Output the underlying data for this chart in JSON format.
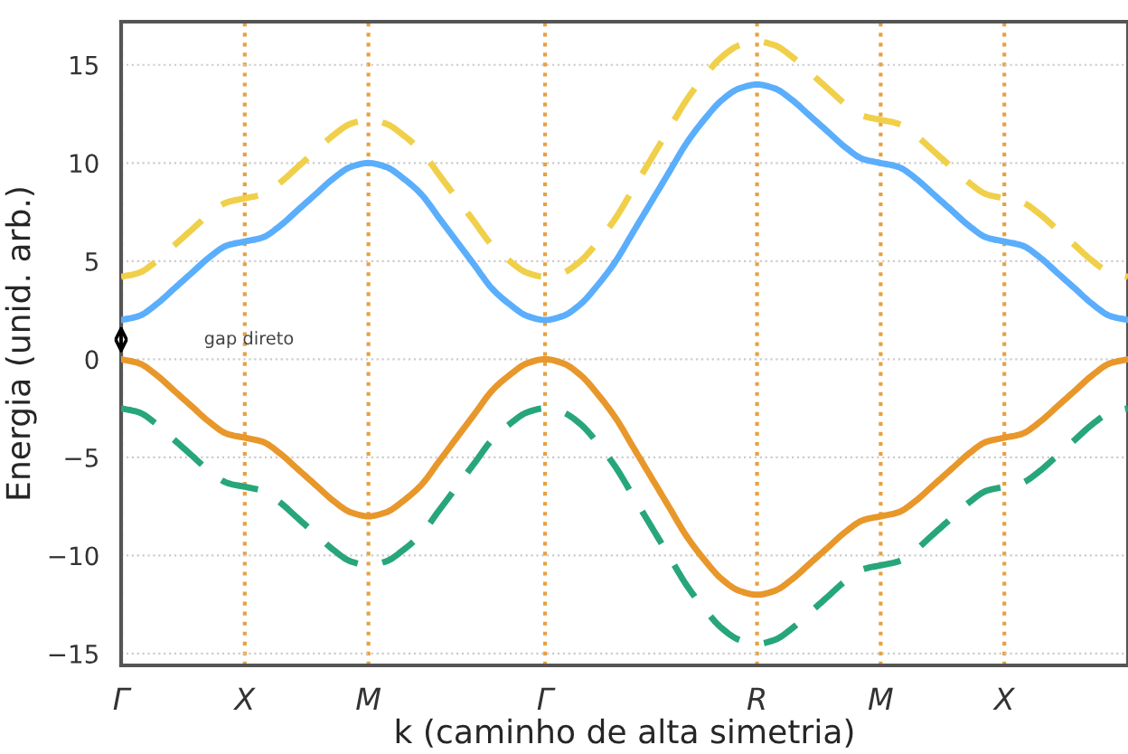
{
  "chart_data": {
    "type": "line",
    "xlabel": "k (caminho de alta simetria)",
    "ylabel": "Energia (unid. arb.)",
    "categories": [
      "Γ",
      null,
      null,
      null,
      null,
      null,
      null,
      "X",
      null,
      null,
      null,
      null,
      null,
      null,
      "M",
      null,
      null,
      null,
      null,
      null,
      null,
      null,
      null,
      null,
      "Γ",
      null,
      null,
      null,
      null,
      null,
      null,
      null,
      null,
      null,
      null,
      null,
      "R",
      null,
      null,
      null,
      null,
      null,
      null,
      "M",
      null,
      null,
      null,
      null,
      null,
      null,
      "X",
      null,
      null,
      null,
      null,
      null,
      null,
      null
    ],
    "series": [
      {
        "color": "#f0d04a",
        "line_style": "dashed",
        "values": [
          4.2,
          4.4,
          5,
          5.8,
          6.6,
          7.4,
          8,
          8.2,
          8.4,
          9,
          9.8,
          10.6,
          11.4,
          12,
          12.2,
          12,
          11.4,
          10.6,
          9.4,
          8.2,
          7,
          5.8,
          5,
          4.4,
          4.2,
          4.4,
          5,
          6,
          7.2,
          8.7,
          10.2,
          11.7,
          13.2,
          14.4,
          15.4,
          16,
          16.2,
          16,
          15.4,
          14.6,
          13.8,
          13,
          12.4,
          12.2,
          12,
          11.4,
          10.6,
          9.8,
          9,
          8.4,
          8.2,
          8,
          7.4,
          6.6,
          5.8,
          5,
          4.4,
          4.2
        ]
      },
      {
        "color": "#5aaefc",
        "line_style": "solid",
        "values": [
          2,
          2.2,
          2.8,
          3.6,
          4.4,
          5.2,
          5.8,
          6,
          6.2,
          6.8,
          7.6,
          8.4,
          9.2,
          9.8,
          10,
          9.8,
          9.2,
          8.4,
          7.2,
          6,
          4.8,
          3.6,
          2.8,
          2.2,
          2,
          2.2,
          2.8,
          3.8,
          5,
          6.5,
          8,
          9.5,
          11,
          12.2,
          13.2,
          13.8,
          14,
          13.8,
          13.2,
          12.4,
          11.6,
          10.8,
          10.2,
          10,
          9.8,
          9.2,
          8.4,
          7.6,
          6.8,
          6.2,
          6,
          5.8,
          5.2,
          4.4,
          3.6,
          2.8,
          2.2,
          2
        ]
      },
      {
        "color": "#e8972a",
        "line_style": "solid",
        "values": [
          0,
          -0.2,
          -0.8,
          -1.6,
          -2.4,
          -3.2,
          -3.8,
          -4,
          -4.2,
          -4.8,
          -5.6,
          -6.4,
          -7.2,
          -7.8,
          -8,
          -7.8,
          -7.2,
          -6.4,
          -5.2,
          -4,
          -2.8,
          -1.6,
          -0.8,
          -0.2,
          0,
          -0.2,
          -0.8,
          -1.8,
          -3,
          -4.5,
          -6,
          -7.5,
          -9,
          -10.2,
          -11.2,
          -11.8,
          -12,
          -11.8,
          -11.2,
          -10.4,
          -9.6,
          -8.8,
          -8.2,
          -8,
          -7.8,
          -7.2,
          -6.4,
          -5.6,
          -4.8,
          -4.2,
          -4,
          -3.8,
          -3.2,
          -2.4,
          -1.6,
          -0.8,
          -0.2,
          0
        ]
      },
      {
        "color": "#27a67a",
        "line_style": "dashed",
        "values": [
          -2.5,
          -2.7,
          -3.3,
          -4.1,
          -4.9,
          -5.7,
          -6.3,
          -6.5,
          -6.7,
          -7.3,
          -8.1,
          -8.9,
          -9.7,
          -10.3,
          -10.5,
          -10.3,
          -9.7,
          -8.9,
          -7.7,
          -6.5,
          -5.3,
          -4.1,
          -3.3,
          -2.7,
          -2.5,
          -2.7,
          -3.3,
          -4.3,
          -5.5,
          -7,
          -8.5,
          -10,
          -11.5,
          -12.7,
          -13.7,
          -14.3,
          -14.5,
          -14.3,
          -13.7,
          -12.9,
          -12.1,
          -11.3,
          -10.7,
          -10.5,
          -10.3,
          -9.7,
          -8.9,
          -8.1,
          -7.3,
          -6.7,
          -6.5,
          -6.3,
          -5.7,
          -4.9,
          -4.1,
          -3.3,
          -2.7,
          -2.5
        ]
      }
    ],
    "ylim": [
      -15.6,
      17.2
    ],
    "yticks": [
      -15,
      -10,
      -5,
      0,
      5,
      10,
      15
    ],
    "grid": true,
    "marker": "none",
    "annotations": [
      "gap direto"
    ]
  }
}
